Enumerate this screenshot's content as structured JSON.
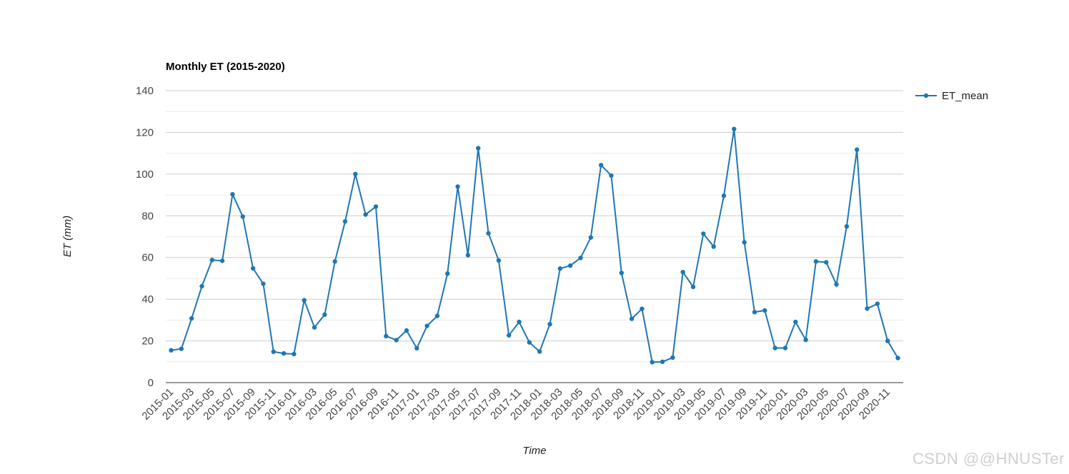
{
  "chart_data": {
    "type": "line",
    "title": "Monthly ET (2015-2020)",
    "xlabel": "Time",
    "ylabel": "ET (mm)",
    "ylim": [
      0,
      140
    ],
    "yticks": [
      0,
      20,
      40,
      60,
      80,
      100,
      120,
      140
    ],
    "grid": true,
    "legend_position": "right",
    "x": [
      "2015-01",
      "2015-02",
      "2015-03",
      "2015-04",
      "2015-05",
      "2015-06",
      "2015-07",
      "2015-08",
      "2015-09",
      "2015-10",
      "2015-11",
      "2015-12",
      "2016-01",
      "2016-02",
      "2016-03",
      "2016-04",
      "2016-05",
      "2016-06",
      "2016-07",
      "2016-08",
      "2016-09",
      "2016-10",
      "2016-11",
      "2016-12",
      "2017-01",
      "2017-02",
      "2017-03",
      "2017-04",
      "2017-05",
      "2017-06",
      "2017-07",
      "2017-08",
      "2017-09",
      "2017-10",
      "2017-11",
      "2017-12",
      "2018-01",
      "2018-02",
      "2018-03",
      "2018-04",
      "2018-05",
      "2018-06",
      "2018-07",
      "2018-08",
      "2018-09",
      "2018-10",
      "2018-11",
      "2018-12",
      "2019-01",
      "2019-02",
      "2019-03",
      "2019-04",
      "2019-05",
      "2019-06",
      "2019-07",
      "2019-08",
      "2019-09",
      "2019-10",
      "2019-11",
      "2019-12",
      "2020-01",
      "2020-02",
      "2020-03",
      "2020-04",
      "2020-05",
      "2020-06",
      "2020-07",
      "2020-08",
      "2020-09",
      "2020-10",
      "2020-11",
      "2020-12"
    ],
    "xtick_labels": [
      "2015-01",
      "2015-03",
      "2015-05",
      "2015-07",
      "2015-09",
      "2015-11",
      "2016-01",
      "2016-03",
      "2016-05",
      "2016-07",
      "2016-09",
      "2016-11",
      "2017-01",
      "2017-03",
      "2017-05",
      "2017-07",
      "2017-09",
      "2017-11",
      "2018-01",
      "2018-03",
      "2018-05",
      "2018-07",
      "2018-09",
      "2018-11",
      "2019-01",
      "2019-03",
      "2019-05",
      "2019-07",
      "2019-09",
      "2019-11",
      "2020-01",
      "2020-03",
      "2020-05",
      "2020-07",
      "2020-09",
      "2020-11"
    ],
    "series": [
      {
        "name": "ET_mean",
        "color": "#1f77b4",
        "values": [
          15.5,
          16.2,
          30.8,
          46.2,
          58.8,
          58.4,
          90.3,
          79.6,
          54.8,
          47.4,
          14.8,
          14.0,
          13.7,
          39.5,
          26.5,
          32.6,
          58.1,
          77.3,
          100.0,
          80.6,
          84.4,
          22.3,
          20.4,
          25.0,
          16.5,
          27.2,
          32.0,
          52.3,
          94.0,
          61.1,
          112.4,
          71.6,
          58.6,
          22.7,
          29.1,
          19.3,
          14.9,
          28.0,
          54.7,
          56.1,
          59.8,
          69.6,
          104.3,
          99.3,
          52.6,
          30.6,
          35.4,
          9.8,
          10.0,
          12.0,
          53.0,
          45.9,
          71.4,
          65.2,
          89.6,
          121.6,
          67.3,
          33.8,
          34.6,
          16.6,
          16.6,
          29.1,
          20.5,
          58.1,
          57.7,
          47.1,
          74.9,
          111.7,
          35.5,
          37.8,
          20.0,
          11.8
        ]
      }
    ]
  },
  "watermark": "CSDN @@HNUSTer"
}
